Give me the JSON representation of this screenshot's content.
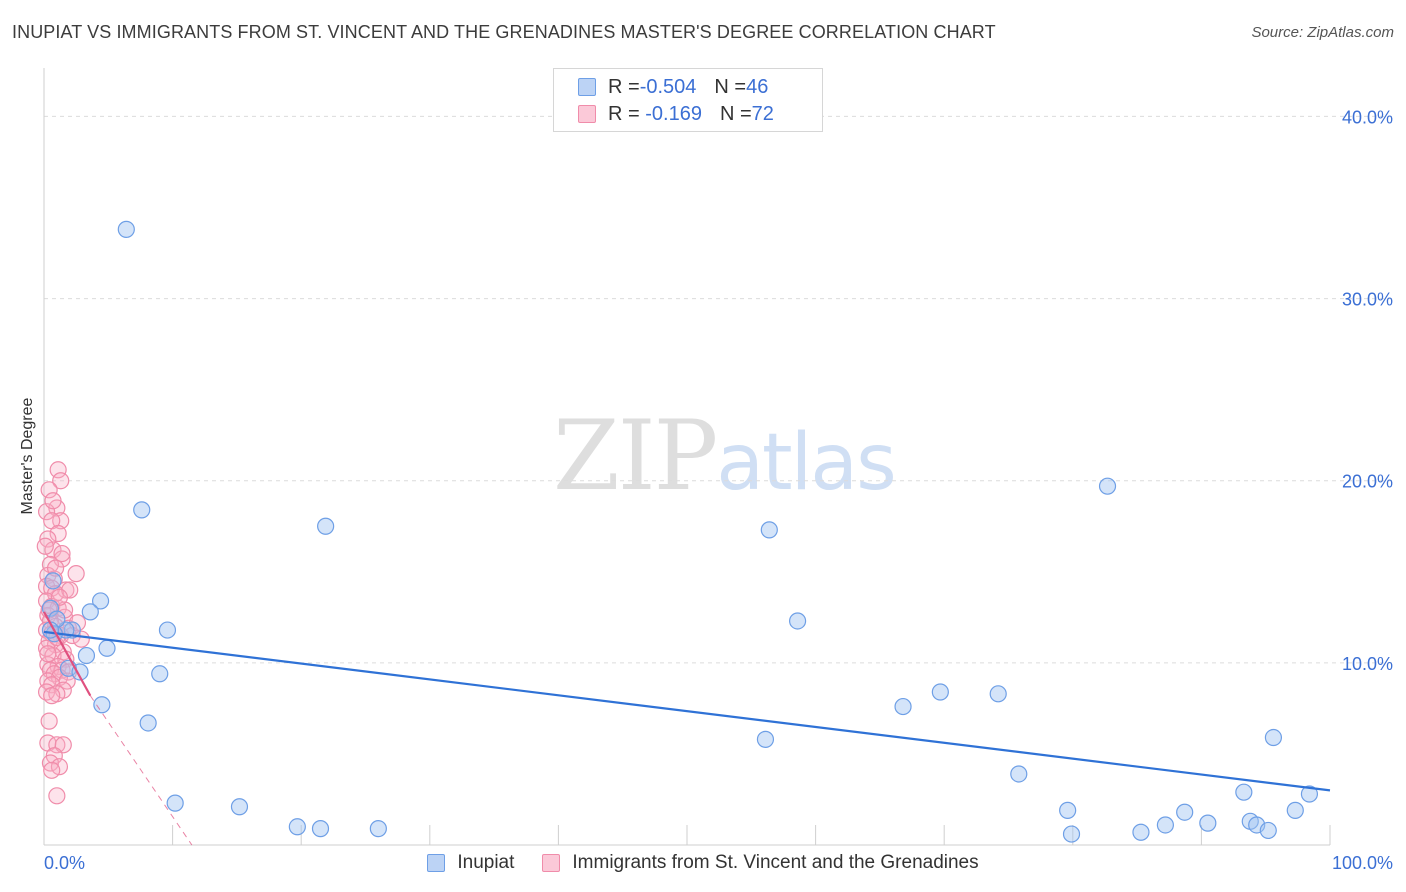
{
  "header": {
    "title": "INUPIAT VS IMMIGRANTS FROM ST. VINCENT AND THE GRENADINES MASTER'S DEGREE CORRELATION CHART",
    "source": "Source: ZipAtlas.com"
  },
  "watermark": {
    "zip": "ZIP",
    "atlas": "atlas"
  },
  "legend": {
    "rows": [
      {
        "r_label": "R = ",
        "r_value": "-0.504",
        "n_label": "N = ",
        "n_value": "46"
      },
      {
        "r_label": "R = ",
        "r_value": " -0.169",
        "n_label": "N = ",
        "n_value": "72"
      }
    ]
  },
  "bottom_legend": {
    "series1": "Inupiat",
    "series2": "Immigrants from St. Vincent and the Grenadines"
  },
  "chart_data": {
    "type": "scatter",
    "title": "INUPIAT VS IMMIGRANTS FROM ST. VINCENT AND THE GRENADINES MASTER'S DEGREE CORRELATION CHART",
    "xlabel": "",
    "ylabel": "Master's Degree",
    "xlim": [
      0,
      100
    ],
    "ylim": [
      0,
      42
    ],
    "x_tick_labels": [
      "0.0%",
      "100.0%"
    ],
    "y_ticks": [
      10,
      20,
      30,
      40
    ],
    "y_tick_labels": [
      "10.0%",
      "20.0%",
      "30.0%",
      "40.0%"
    ],
    "colors": {
      "inupiat": "#6e9fe6",
      "inupiat_line": "#2f72d6",
      "svg": "#f08caa",
      "svg_line": "#e0507f",
      "axis_label": "#3b6fd4"
    },
    "series": [
      {
        "name": "Inupiat",
        "r": -0.504,
        "n": 46,
        "trend": {
          "x0": 0,
          "y0": 11.7,
          "x1": 100,
          "y1": 3.0
        },
        "points": [
          [
            6.4,
            33.8
          ],
          [
            7.6,
            18.4
          ],
          [
            21.9,
            17.5
          ],
          [
            4.4,
            13.4
          ],
          [
            3.6,
            12.8
          ],
          [
            9.6,
            11.8
          ],
          [
            2.2,
            11.8
          ],
          [
            1.7,
            11.8
          ],
          [
            0.7,
            14.5
          ],
          [
            0.5,
            13.0
          ],
          [
            1.0,
            12.4
          ],
          [
            0.8,
            11.6
          ],
          [
            0.5,
            11.8
          ],
          [
            4.9,
            10.8
          ],
          [
            3.3,
            10.4
          ],
          [
            1.9,
            9.7
          ],
          [
            4.5,
            7.7
          ],
          [
            9.0,
            9.4
          ],
          [
            8.1,
            6.7
          ],
          [
            2.8,
            9.5
          ],
          [
            10.2,
            2.3
          ],
          [
            15.2,
            2.1
          ],
          [
            19.7,
            1.0
          ],
          [
            21.5,
            0.9
          ],
          [
            26.0,
            0.9
          ],
          [
            56.1,
            5.8
          ],
          [
            56.4,
            17.3
          ],
          [
            58.6,
            12.3
          ],
          [
            66.8,
            7.6
          ],
          [
            69.7,
            8.4
          ],
          [
            74.2,
            8.3
          ],
          [
            75.8,
            3.9
          ],
          [
            79.6,
            1.9
          ],
          [
            79.9,
            0.6
          ],
          [
            82.7,
            19.7
          ],
          [
            85.3,
            0.7
          ],
          [
            87.2,
            1.1
          ],
          [
            88.7,
            1.8
          ],
          [
            90.5,
            1.2
          ],
          [
            93.3,
            2.9
          ],
          [
            93.8,
            1.3
          ],
          [
            94.3,
            1.1
          ],
          [
            95.2,
            0.8
          ],
          [
            95.6,
            5.9
          ],
          [
            97.3,
            1.9
          ],
          [
            98.4,
            2.8
          ]
        ]
      },
      {
        "name": "Immigrants from St. Vincent and the Grenadines",
        "r": -0.169,
        "n": 72,
        "trend": {
          "x0": 0,
          "y0": 12.8,
          "x1": 3.6,
          "y1": 8.2
        },
        "trend_dashed": {
          "x0": 3.6,
          "y0": 8.2,
          "x1": 11.5,
          "y1": 0
        },
        "points": [
          [
            1.1,
            20.6
          ],
          [
            1.3,
            20.0
          ],
          [
            0.4,
            19.5
          ],
          [
            1.0,
            18.5
          ],
          [
            0.2,
            18.3
          ],
          [
            1.3,
            17.8
          ],
          [
            0.6,
            17.8
          ],
          [
            1.1,
            17.1
          ],
          [
            0.3,
            16.8
          ],
          [
            0.7,
            16.2
          ],
          [
            0.1,
            16.4
          ],
          [
            1.4,
            15.7
          ],
          [
            0.5,
            15.4
          ],
          [
            2.5,
            14.9
          ],
          [
            0.3,
            14.8
          ],
          [
            0.8,
            14.6
          ],
          [
            0.2,
            14.2
          ],
          [
            0.6,
            14.1
          ],
          [
            1.7,
            14.0
          ],
          [
            0.9,
            13.8
          ],
          [
            0.2,
            13.4
          ],
          [
            0.6,
            13.1
          ],
          [
            1.1,
            13.0
          ],
          [
            0.3,
            12.6
          ],
          [
            1.6,
            12.5
          ],
          [
            0.5,
            12.3
          ],
          [
            0.9,
            12.0
          ],
          [
            1.9,
            11.9
          ],
          [
            0.2,
            11.8
          ],
          [
            0.6,
            11.6
          ],
          [
            1.3,
            11.5
          ],
          [
            2.2,
            11.5
          ],
          [
            2.9,
            11.3
          ],
          [
            0.4,
            11.2
          ],
          [
            0.9,
            11.0
          ],
          [
            0.2,
            10.8
          ],
          [
            1.5,
            10.6
          ],
          [
            0.7,
            10.4
          ],
          [
            1.7,
            10.2
          ],
          [
            0.3,
            9.9
          ],
          [
            1.1,
            9.8
          ],
          [
            0.5,
            9.6
          ],
          [
            1.4,
            9.6
          ],
          [
            1.9,
            9.5
          ],
          [
            0.8,
            9.4
          ],
          [
            1.2,
            9.2
          ],
          [
            0.3,
            9.0
          ],
          [
            1.8,
            9.0
          ],
          [
            0.6,
            8.8
          ],
          [
            1.5,
            8.5
          ],
          [
            0.2,
            8.4
          ],
          [
            1.0,
            8.3
          ],
          [
            0.6,
            8.2
          ],
          [
            0.4,
            6.8
          ],
          [
            0.3,
            5.6
          ],
          [
            1.0,
            5.5
          ],
          [
            1.5,
            5.5
          ],
          [
            0.8,
            4.9
          ],
          [
            0.5,
            4.5
          ],
          [
            1.2,
            4.3
          ],
          [
            0.6,
            4.1
          ],
          [
            1.0,
            2.7
          ],
          [
            2.0,
            14.0
          ],
          [
            1.4,
            16.0
          ],
          [
            0.9,
            15.2
          ],
          [
            0.4,
            12.9
          ],
          [
            2.6,
            12.2
          ],
          [
            1.0,
            11.4
          ],
          [
            0.3,
            10.5
          ],
          [
            1.6,
            12.9
          ],
          [
            0.7,
            18.9
          ],
          [
            1.2,
            13.6
          ]
        ]
      }
    ]
  }
}
